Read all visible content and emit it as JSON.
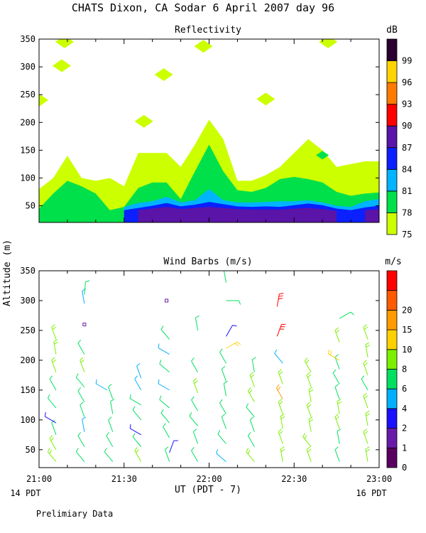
{
  "figure": {
    "title": "CHATS Dixon, CA  Sodar   6 April 2007  day  96",
    "ylabel": "Altitude (m)",
    "xlabel": "UT  (PDT - 7)",
    "x_left_note": "14 PDT",
    "x_right_note": "16 PDT",
    "footer": "Prelimiary Data"
  },
  "chart_data": [
    {
      "type": "heatmap",
      "title": "Reflectivity",
      "colorbar_label": "dB",
      "xlim": [
        "21:00",
        "23:00"
      ],
      "ylim": [
        20,
        350
      ],
      "x_ticks": [
        "21:00",
        "21:30",
        "22:00",
        "22:30",
        "23:00"
      ],
      "y_ticks": [
        50,
        100,
        150,
        200,
        250,
        300,
        350
      ],
      "levels": [
        {
          "value": 75,
          "label": "75",
          "color": "#ccff00"
        },
        {
          "value": 78,
          "label": "78",
          "color": "#00e04a"
        },
        {
          "value": 81,
          "label": "81",
          "color": "#00b4ff"
        },
        {
          "value": 84,
          "label": "84",
          "color": "#0a20ff"
        },
        {
          "value": 87,
          "label": "87",
          "color": "#5a14a8"
        },
        {
          "value": 90,
          "label": "90",
          "color": "#ff0000"
        },
        {
          "value": 93,
          "label": "93",
          "color": "#ff7a00"
        },
        {
          "value": 96,
          "label": "96",
          "color": "#ffd400"
        },
        {
          "value": 99,
          "label": "99",
          "color": "#2b0030"
        }
      ],
      "time_minutes": [
        0,
        5,
        10,
        15,
        20,
        25,
        30,
        35,
        40,
        45,
        50,
        55,
        60,
        65,
        70,
        75,
        80,
        85,
        90,
        95,
        100,
        105,
        110,
        115,
        120
      ],
      "contours": [
        {
          "level": 75,
          "top": [
            80,
            100,
            140,
            100,
            95,
            100,
            85,
            145,
            145,
            145,
            120,
            160,
            205,
            170,
            95,
            95,
            105,
            120,
            145,
            170,
            150,
            120,
            125,
            130,
            130
          ]
        },
        {
          "level": 78,
          "top": [
            45,
            72,
            95,
            85,
            72,
            42,
            48,
            82,
            92,
            92,
            62,
            112,
            160,
            112,
            78,
            75,
            82,
            98,
            102,
            98,
            92,
            75,
            68,
            72,
            74
          ]
        },
        {
          "level": 81,
          "top": [
            0,
            0,
            0,
            0,
            0,
            0,
            48,
            55,
            58,
            66,
            56,
            60,
            80,
            60,
            56,
            56,
            57,
            58,
            58,
            60,
            56,
            50,
            48,
            58,
            62
          ]
        },
        {
          "level": 84,
          "top": [
            0,
            0,
            0,
            0,
            0,
            0,
            42,
            46,
            50,
            55,
            49,
            52,
            57,
            53,
            49,
            48,
            49,
            48,
            51,
            54,
            51,
            45,
            42,
            47,
            50
          ]
        },
        {
          "level": 87,
          "top": [
            0,
            0,
            0,
            0,
            0,
            0,
            0,
            42,
            45,
            48,
            44,
            46,
            48,
            46,
            44,
            43,
            43,
            43,
            45,
            46,
            44,
            41,
            0,
            42,
            44
          ]
        }
      ],
      "patches": [
        {
          "level": 75,
          "time_minutes": 9,
          "altitude": 345
        },
        {
          "level": 75,
          "time_minutes": 8,
          "altitude": 302
        },
        {
          "level": 75,
          "time_minutes": 0,
          "altitude": 240
        },
        {
          "level": 75,
          "time_minutes": 44,
          "altitude": 286
        },
        {
          "level": 75,
          "time_minutes": 58,
          "altitude": 337
        },
        {
          "level": 75,
          "time_minutes": 37,
          "altitude": 202
        },
        {
          "level": 75,
          "time_minutes": 80,
          "altitude": 242
        },
        {
          "level": 75,
          "time_minutes": 102,
          "altitude": 345
        },
        {
          "level": 78,
          "time_minutes": 100,
          "altitude": 141
        }
      ]
    },
    {
      "type": "scatter",
      "title": "Wind Barbs (m/s)",
      "colorbar_label": "m/s",
      "xlim": [
        "21:00",
        "23:00"
      ],
      "ylim": [
        20,
        350
      ],
      "x_ticks": [
        "21:00",
        "21:30",
        "22:00",
        "22:30",
        "23:00"
      ],
      "y_ticks": [
        50,
        100,
        150,
        200,
        250,
        300,
        350
      ],
      "levels": [
        {
          "value": 0,
          "label": "0",
          "color": "#5a0060"
        },
        {
          "value": 1,
          "label": "1",
          "color": "#6a1aa8"
        },
        {
          "value": 2,
          "label": "2",
          "color": "#1a10ff"
        },
        {
          "value": 3,
          "label": "4",
          "color": "#00b0ff"
        },
        {
          "value": 4,
          "label": "6",
          "color": "#00e060"
        },
        {
          "value": 5,
          "label": "8",
          "color": "#7cf000"
        },
        {
          "value": 6,
          "label": "10",
          "color": "#ffd000"
        },
        {
          "value": 7,
          "label": "15",
          "color": "#ff9a00"
        },
        {
          "value": 8,
          "label": "20",
          "color": "#ff5a00"
        },
        {
          "value": 9,
          "label": "",
          "color": "#ff0000"
        }
      ],
      "barbs": [
        {
          "t": 6,
          "z": 30,
          "dir": 320,
          "level": 5
        },
        {
          "t": 6,
          "z": 50,
          "dir": 330,
          "level": 5
        },
        {
          "t": 6,
          "z": 75,
          "dir": 340,
          "level": 4
        },
        {
          "t": 6,
          "z": 95,
          "dir": 300,
          "level": 2
        },
        {
          "t": 6,
          "z": 120,
          "dir": 320,
          "level": 4
        },
        {
          "t": 6,
          "z": 150,
          "dir": 330,
          "level": 4
        },
        {
          "t": 6,
          "z": 180,
          "dir": 340,
          "level": 5
        },
        {
          "t": 6,
          "z": 210,
          "dir": 350,
          "level": 5
        },
        {
          "t": 6,
          "z": 235,
          "dir": 340,
          "level": 5
        },
        {
          "t": 16,
          "z": 30,
          "dir": 320,
          "level": 4
        },
        {
          "t": 16,
          "z": 55,
          "dir": 330,
          "level": 4
        },
        {
          "t": 16,
          "z": 80,
          "dir": 350,
          "level": 3
        },
        {
          "t": 16,
          "z": 105,
          "dir": 340,
          "level": 4
        },
        {
          "t": 16,
          "z": 130,
          "dir": 330,
          "level": 4
        },
        {
          "t": 16,
          "z": 155,
          "dir": 320,
          "level": 4
        },
        {
          "t": 16,
          "z": 180,
          "dir": 340,
          "level": 5
        },
        {
          "t": 16,
          "z": 210,
          "dir": 330,
          "level": 4
        },
        {
          "t": 16,
          "z": 260,
          "dir": 0,
          "level": 1
        },
        {
          "t": 16,
          "z": 295,
          "dir": 350,
          "level": 3
        },
        {
          "t": 16,
          "z": 310,
          "dir": 5,
          "level": 4
        },
        {
          "t": 26,
          "z": 30,
          "dir": 320,
          "level": 4
        },
        {
          "t": 26,
          "z": 55,
          "dir": 330,
          "level": 4
        },
        {
          "t": 26,
          "z": 80,
          "dir": 340,
          "level": 4
        },
        {
          "t": 26,
          "z": 110,
          "dir": 350,
          "level": 4
        },
        {
          "t": 26,
          "z": 135,
          "dir": 340,
          "level": 4
        },
        {
          "t": 24,
          "z": 150,
          "dir": 300,
          "level": 3
        },
        {
          "t": 36,
          "z": 30,
          "dir": 330,
          "level": 5
        },
        {
          "t": 36,
          "z": 55,
          "dir": 320,
          "level": 4
        },
        {
          "t": 36,
          "z": 75,
          "dir": 300,
          "level": 2
        },
        {
          "t": 36,
          "z": 100,
          "dir": 320,
          "level": 4
        },
        {
          "t": 36,
          "z": 125,
          "dir": 300,
          "level": 4
        },
        {
          "t": 36,
          "z": 150,
          "dir": 330,
          "level": 3
        },
        {
          "t": 36,
          "z": 170,
          "dir": 340,
          "level": 3
        },
        {
          "t": 46,
          "z": 30,
          "dir": 340,
          "level": 4
        },
        {
          "t": 46,
          "z": 45,
          "dir": 20,
          "level": 2
        },
        {
          "t": 46,
          "z": 70,
          "dir": 330,
          "level": 4
        },
        {
          "t": 46,
          "z": 95,
          "dir": 320,
          "level": 4
        },
        {
          "t": 46,
          "z": 120,
          "dir": 310,
          "level": 4
        },
        {
          "t": 46,
          "z": 150,
          "dir": 300,
          "level": 3
        },
        {
          "t": 46,
          "z": 180,
          "dir": 310,
          "level": 4
        },
        {
          "t": 46,
          "z": 210,
          "dir": 300,
          "level": 3
        },
        {
          "t": 46,
          "z": 235,
          "dir": 320,
          "level": 4
        },
        {
          "t": 45,
          "z": 300,
          "dir": 0,
          "level": 1
        },
        {
          "t": 56,
          "z": 30,
          "dir": 330,
          "level": 4
        },
        {
          "t": 56,
          "z": 60,
          "dir": 340,
          "level": 4
        },
        {
          "t": 56,
          "z": 90,
          "dir": 320,
          "level": 4
        },
        {
          "t": 56,
          "z": 115,
          "dir": 330,
          "level": 4
        },
        {
          "t": 56,
          "z": 145,
          "dir": 340,
          "level": 5
        },
        {
          "t": 56,
          "z": 180,
          "dir": 330,
          "level": 4
        },
        {
          "t": 56,
          "z": 250,
          "dir": 350,
          "level": 4
        },
        {
          "t": 66,
          "z": 30,
          "dir": 310,
          "level": 3
        },
        {
          "t": 66,
          "z": 60,
          "dir": 320,
          "level": 4
        },
        {
          "t": 66,
          "z": 85,
          "dir": 340,
          "level": 4
        },
        {
          "t": 66,
          "z": 110,
          "dir": 330,
          "level": 4
        },
        {
          "t": 66,
          "z": 140,
          "dir": 350,
          "level": 4
        },
        {
          "t": 66,
          "z": 165,
          "dir": 340,
          "level": 4
        },
        {
          "t": 66,
          "z": 195,
          "dir": 330,
          "level": 4
        },
        {
          "t": 66,
          "z": 220,
          "dir": 60,
          "level": 6
        },
        {
          "t": 66,
          "z": 240,
          "dir": 30,
          "level": 2
        },
        {
          "t": 66,
          "z": 300,
          "dir": 90,
          "level": 4
        },
        {
          "t": 66,
          "z": 330,
          "dir": 350,
          "level": 4
        },
        {
          "t": 76,
          "z": 30,
          "dir": 320,
          "level": 5
        },
        {
          "t": 76,
          "z": 55,
          "dir": 330,
          "level": 4
        },
        {
          "t": 76,
          "z": 80,
          "dir": 340,
          "level": 4
        },
        {
          "t": 76,
          "z": 105,
          "dir": 320,
          "level": 4
        },
        {
          "t": 76,
          "z": 130,
          "dir": 330,
          "level": 5
        },
        {
          "t": 76,
          "z": 155,
          "dir": 340,
          "level": 5
        },
        {
          "t": 76,
          "z": 180,
          "dir": 350,
          "level": 4
        },
        {
          "t": 86,
          "z": 30,
          "dir": 350,
          "level": 5
        },
        {
          "t": 86,
          "z": 60,
          "dir": 340,
          "level": 5
        },
        {
          "t": 86,
          "z": 85,
          "dir": 350,
          "level": 5
        },
        {
          "t": 86,
          "z": 110,
          "dir": 340,
          "level": 5
        },
        {
          "t": 86,
          "z": 135,
          "dir": 330,
          "level": 7
        },
        {
          "t": 86,
          "z": 160,
          "dir": 340,
          "level": 5
        },
        {
          "t": 86,
          "z": 195,
          "dir": 320,
          "level": 3
        },
        {
          "t": 84,
          "z": 240,
          "dir": 20,
          "level": 9
        },
        {
          "t": 84,
          "z": 290,
          "dir": 10,
          "level": 9
        },
        {
          "t": 96,
          "z": 30,
          "dir": 340,
          "level": 5
        },
        {
          "t": 96,
          "z": 55,
          "dir": 320,
          "level": 5
        },
        {
          "t": 96,
          "z": 80,
          "dir": 350,
          "level": 5
        },
        {
          "t": 96,
          "z": 105,
          "dir": 340,
          "level": 5
        },
        {
          "t": 96,
          "z": 130,
          "dir": 350,
          "level": 5
        },
        {
          "t": 96,
          "z": 155,
          "dir": 340,
          "level": 5
        },
        {
          "t": 96,
          "z": 180,
          "dir": 330,
          "level": 5
        },
        {
          "t": 106,
          "z": 30,
          "dir": 340,
          "level": 4
        },
        {
          "t": 106,
          "z": 60,
          "dir": 350,
          "level": 4
        },
        {
          "t": 106,
          "z": 85,
          "dir": 340,
          "level": 5
        },
        {
          "t": 106,
          "z": 110,
          "dir": 350,
          "level": 5
        },
        {
          "t": 106,
          "z": 135,
          "dir": 340,
          "level": 4
        },
        {
          "t": 106,
          "z": 160,
          "dir": 330,
          "level": 4
        },
        {
          "t": 106,
          "z": 185,
          "dir": 340,
          "level": 4
        },
        {
          "t": 106,
          "z": 200,
          "dir": 300,
          "level": 6
        },
        {
          "t": 106,
          "z": 230,
          "dir": 340,
          "level": 5
        },
        {
          "t": 106,
          "z": 270,
          "dir": 60,
          "level": 4
        },
        {
          "t": 116,
          "z": 30,
          "dir": 350,
          "level": 5
        },
        {
          "t": 116,
          "z": 60,
          "dir": 340,
          "level": 5
        },
        {
          "t": 116,
          "z": 90,
          "dir": 350,
          "level": 5
        },
        {
          "t": 116,
          "z": 120,
          "dir": 340,
          "level": 5
        },
        {
          "t": 116,
          "z": 150,
          "dir": 330,
          "level": 4
        },
        {
          "t": 116,
          "z": 175,
          "dir": 340,
          "level": 5
        },
        {
          "t": 116,
          "z": 205,
          "dir": 350,
          "level": 5
        },
        {
          "t": 116,
          "z": 235,
          "dir": 340,
          "level": 5
        }
      ]
    }
  ]
}
